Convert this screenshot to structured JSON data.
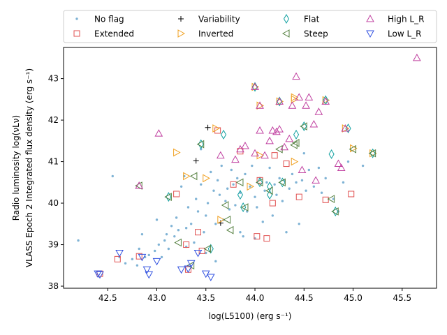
{
  "chart_data": {
    "type": "scatter",
    "title": "",
    "xlabel": "log(L5100) (erg s⁻¹)",
    "ylabel_line1": "Radio luminosity log(νLν)",
    "ylabel_line2": "VLASS Epoch 2 Integrated flux density (erg s⁻¹)",
    "xlim": [
      42.05,
      45.85
    ],
    "ylim": [
      37.95,
      43.75
    ],
    "xticks": [
      "42.5",
      "43.0",
      "43.5",
      "44.0",
      "44.5",
      "45.0",
      "45.5"
    ],
    "xtick_values": [
      42.5,
      43.0,
      43.5,
      44.0,
      44.5,
      45.0,
      45.5
    ],
    "yticks": [
      "38",
      "39",
      "40",
      "41",
      "42",
      "43"
    ],
    "ytick_values": [
      38,
      39,
      40,
      41,
      42,
      43
    ],
    "legend": [
      {
        "name": "No flag",
        "color": "#7fb3d5",
        "marker": "dot"
      },
      {
        "name": "Extended",
        "color": "#e05050",
        "marker": "square"
      },
      {
        "name": "Variability",
        "color": "#000000",
        "marker": "plus"
      },
      {
        "name": "Inverted",
        "color": "#f0a020",
        "marker": "tri-right"
      },
      {
        "name": "Flat",
        "color": "#10a0a0",
        "marker": "diamond"
      },
      {
        "name": "Steep",
        "color": "#558040",
        "marker": "tri-left"
      },
      {
        "name": "High L_R",
        "color": "#c040a0",
        "marker": "tri-up"
      },
      {
        "name": "Low L_R",
        "color": "#3050e0",
        "marker": "tri-down"
      }
    ],
    "series": [
      {
        "name": "No flag",
        "points": [
          [
            42.2,
            39.1
          ],
          [
            42.55,
            40.65
          ],
          [
            42.62,
            38.7
          ],
          [
            42.68,
            38.55
          ],
          [
            42.75,
            38.65
          ],
          [
            42.8,
            38.5
          ],
          [
            42.82,
            38.9
          ],
          [
            42.85,
            39.25
          ],
          [
            42.88,
            38.7
          ],
          [
            42.92,
            38.75
          ],
          [
            42.98,
            38.85
          ],
          [
            43.0,
            39.6
          ],
          [
            43.02,
            39.0
          ],
          [
            43.05,
            38.7
          ],
          [
            43.08,
            39.1
          ],
          [
            43.1,
            39.25
          ],
          [
            43.12,
            38.9
          ],
          [
            43.15,
            39.45
          ],
          [
            43.18,
            39.2
          ],
          [
            43.2,
            39.65
          ],
          [
            43.22,
            39.35
          ],
          [
            43.25,
            40.4
          ],
          [
            43.28,
            40.65
          ],
          [
            43.3,
            39.4
          ],
          [
            43.32,
            39.9
          ],
          [
            43.35,
            39.5
          ],
          [
            43.38,
            39.05
          ],
          [
            43.4,
            40.1
          ],
          [
            43.42,
            39.8
          ],
          [
            43.45,
            40.45
          ],
          [
            43.48,
            39.3
          ],
          [
            43.5,
            39.7
          ],
          [
            43.52,
            40.0
          ],
          [
            43.55,
            40.75
          ],
          [
            43.58,
            40.3
          ],
          [
            43.6,
            39.5
          ],
          [
            43.62,
            40.55
          ],
          [
            43.64,
            40.2
          ],
          [
            43.66,
            40.9
          ],
          [
            43.68,
            39.6
          ],
          [
            43.7,
            40.05
          ],
          [
            43.72,
            40.35
          ],
          [
            43.74,
            39.85
          ],
          [
            43.76,
            40.8
          ],
          [
            43.78,
            40.45
          ],
          [
            43.8,
            39.95
          ],
          [
            43.82,
            40.6
          ],
          [
            43.85,
            40.25
          ],
          [
            43.88,
            39.2
          ],
          [
            43.9,
            40.7
          ],
          [
            43.92,
            39.8
          ],
          [
            43.95,
            40.4
          ],
          [
            43.97,
            40.9
          ],
          [
            44.0,
            40.15
          ],
          [
            44.02,
            39.9
          ],
          [
            44.05,
            40.6
          ],
          [
            44.08,
            39.55
          ],
          [
            44.1,
            40.3
          ],
          [
            44.12,
            40.5
          ],
          [
            44.15,
            40.85
          ],
          [
            44.18,
            39.7
          ],
          [
            44.2,
            40.45
          ],
          [
            44.22,
            40.2
          ],
          [
            44.25,
            40.6
          ],
          [
            44.28,
            40.05
          ],
          [
            44.3,
            40.55
          ],
          [
            44.32,
            39.3
          ],
          [
            44.35,
            40.35
          ],
          [
            44.38,
            40.7
          ],
          [
            44.42,
            40.5
          ],
          [
            44.45,
            39.5
          ],
          [
            44.48,
            40.55
          ],
          [
            44.5,
            41.2
          ],
          [
            44.52,
            40.3
          ],
          [
            44.55,
            40.8
          ],
          [
            44.6,
            40.4
          ],
          [
            44.65,
            40.85
          ],
          [
            44.68,
            40.25
          ],
          [
            44.72,
            40.6
          ],
          [
            44.8,
            40.1
          ],
          [
            44.85,
            39.8
          ],
          [
            44.9,
            40.5
          ],
          [
            44.95,
            41.0
          ],
          [
            45.1,
            40.9
          ],
          [
            43.6,
            38.6
          ],
          [
            43.5,
            38.8
          ],
          [
            43.85,
            39.3
          ],
          [
            44.0,
            39.15
          ],
          [
            43.3,
            38.95
          ],
          [
            43.45,
            41.3
          ]
        ]
      },
      {
        "name": "Extended",
        "points": [
          [
            42.42,
            38.3
          ],
          [
            42.6,
            38.65
          ],
          [
            42.82,
            38.72
          ],
          [
            43.2,
            40.22
          ],
          [
            43.3,
            39.0
          ],
          [
            43.32,
            38.4
          ],
          [
            43.42,
            39.3
          ],
          [
            43.46,
            38.85
          ],
          [
            43.78,
            40.45
          ],
          [
            43.85,
            41.25
          ],
          [
            44.02,
            39.2
          ],
          [
            44.12,
            39.15
          ],
          [
            44.18,
            40.0
          ],
          [
            44.45,
            40.15
          ],
          [
            44.72,
            40.08
          ],
          [
            44.98,
            40.22
          ],
          [
            44.2,
            41.15
          ],
          [
            44.32,
            40.95
          ],
          [
            44.05,
            40.55
          ],
          [
            43.62,
            41.75
          ]
        ]
      },
      {
        "name": "Variability",
        "points": [
          [
            43.52,
            41.82
          ],
          [
            43.4,
            41.02
          ],
          [
            43.65,
            39.52
          ]
        ]
      },
      {
        "name": "Inverted",
        "points": [
          [
            43.2,
            41.22
          ],
          [
            43.5,
            40.6
          ],
          [
            43.6,
            41.8
          ],
          [
            43.95,
            40.4
          ],
          [
            44.0,
            42.8
          ],
          [
            44.05,
            42.35
          ],
          [
            44.25,
            42.45
          ],
          [
            44.4,
            42.55
          ],
          [
            44.72,
            42.48
          ],
          [
            44.92,
            41.8
          ],
          [
            45.0,
            41.32
          ],
          [
            45.2,
            41.2
          ],
          [
            43.65,
            39.6
          ],
          [
            44.05,
            41.15
          ],
          [
            43.3,
            40.65
          ],
          [
            44.4,
            41.0
          ],
          [
            44.4,
            42.5
          ]
        ]
      },
      {
        "name": "Flat",
        "points": [
          [
            43.12,
            40.15
          ],
          [
            43.45,
            41.42
          ],
          [
            43.55,
            38.9
          ],
          [
            43.68,
            41.65
          ],
          [
            43.85,
            40.2
          ],
          [
            43.88,
            39.9
          ],
          [
            44.05,
            40.5
          ],
          [
            44.15,
            40.2
          ],
          [
            44.28,
            40.5
          ],
          [
            44.42,
            41.65
          ],
          [
            44.5,
            41.85
          ],
          [
            44.78,
            41.18
          ],
          [
            44.82,
            39.8
          ],
          [
            44.0,
            42.8
          ],
          [
            44.25,
            42.45
          ],
          [
            44.72,
            42.48
          ],
          [
            44.95,
            41.8
          ],
          [
            45.2,
            41.2
          ],
          [
            44.15,
            40.4
          ]
        ]
      },
      {
        "name": "Steep",
        "points": [
          [
            42.82,
            40.42
          ],
          [
            43.12,
            40.15
          ],
          [
            43.22,
            39.05
          ],
          [
            43.35,
            38.5
          ],
          [
            43.38,
            40.65
          ],
          [
            43.45,
            41.42
          ],
          [
            43.52,
            38.9
          ],
          [
            43.7,
            39.95
          ],
          [
            43.72,
            39.6
          ],
          [
            43.75,
            39.35
          ],
          [
            43.85,
            40.5
          ],
          [
            43.9,
            39.9
          ],
          [
            44.05,
            40.5
          ],
          [
            44.15,
            40.3
          ],
          [
            44.25,
            41.3
          ],
          [
            44.28,
            40.5
          ],
          [
            44.42,
            41.45
          ],
          [
            44.5,
            41.85
          ],
          [
            44.78,
            40.1
          ],
          [
            44.82,
            39.8
          ],
          [
            45.0,
            41.3
          ],
          [
            45.2,
            41.2
          ],
          [
            44.4,
            41.4
          ]
        ]
      },
      {
        "name": "High L_R",
        "points": [
          [
            42.82,
            40.42
          ],
          [
            43.02,
            41.68
          ],
          [
            43.65,
            41.15
          ],
          [
            43.8,
            41.05
          ],
          [
            43.85,
            41.3
          ],
          [
            43.9,
            41.38
          ],
          [
            44.0,
            41.2
          ],
          [
            44.05,
            41.75
          ],
          [
            44.1,
            41.15
          ],
          [
            44.15,
            41.5
          ],
          [
            44.18,
            41.75
          ],
          [
            44.22,
            41.72
          ],
          [
            44.25,
            41.78
          ],
          [
            44.3,
            41.35
          ],
          [
            44.35,
            41.55
          ],
          [
            44.38,
            42.35
          ],
          [
            44.42,
            43.05
          ],
          [
            44.45,
            42.55
          ],
          [
            44.48,
            40.8
          ],
          [
            44.52,
            42.35
          ],
          [
            44.55,
            42.55
          ],
          [
            44.6,
            41.9
          ],
          [
            44.62,
            40.55
          ],
          [
            44.65,
            42.2
          ],
          [
            44.72,
            42.45
          ],
          [
            44.85,
            40.95
          ],
          [
            44.88,
            40.85
          ],
          [
            44.92,
            41.8
          ],
          [
            45.65,
            43.5
          ],
          [
            44.0,
            42.8
          ],
          [
            44.05,
            42.35
          ],
          [
            44.25,
            42.45
          ]
        ]
      },
      {
        "name": "Low L_R",
        "points": [
          [
            42.4,
            38.3
          ],
          [
            42.42,
            38.28
          ],
          [
            42.62,
            38.8
          ],
          [
            42.85,
            38.7
          ],
          [
            42.9,
            38.4
          ],
          [
            42.92,
            38.28
          ],
          [
            43.0,
            38.6
          ],
          [
            43.25,
            38.4
          ],
          [
            43.32,
            38.42
          ],
          [
            43.35,
            38.55
          ],
          [
            43.42,
            38.8
          ],
          [
            43.5,
            38.3
          ],
          [
            43.55,
            38.22
          ]
        ]
      }
    ]
  }
}
